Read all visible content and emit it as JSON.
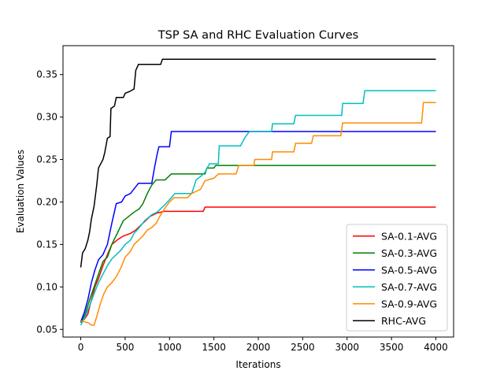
{
  "chart_data": {
    "type": "line",
    "title": "TSP SA and RHC Evaluation Curves",
    "xlabel": "Iterations",
    "ylabel": "Evaluation Values",
    "xlim": [
      -200,
      4200
    ],
    "ylim": [
      0.041,
      0.384
    ],
    "xticks": [
      0,
      500,
      1000,
      1500,
      2000,
      2500,
      3000,
      3500,
      4000
    ],
    "yticks": [
      0.05,
      0.1,
      0.15,
      0.2,
      0.25,
      0.3,
      0.35
    ],
    "ytick_labels": [
      "0.05",
      "0.10",
      "0.15",
      "0.20",
      "0.25",
      "0.30",
      "0.35"
    ],
    "grid": false,
    "legend_position": "lower-right",
    "series": [
      {
        "name": "SA-0.1-AVG",
        "color": "#ff0000",
        "points": [
          [
            0,
            0.06
          ],
          [
            40,
            0.062
          ],
          [
            80,
            0.068
          ],
          [
            120,
            0.085
          ],
          [
            160,
            0.1
          ],
          [
            200,
            0.11
          ],
          [
            250,
            0.125
          ],
          [
            300,
            0.138
          ],
          [
            350,
            0.15
          ],
          [
            420,
            0.156
          ],
          [
            480,
            0.16
          ],
          [
            560,
            0.163
          ],
          [
            620,
            0.167
          ],
          [
            700,
            0.175
          ],
          [
            780,
            0.183
          ],
          [
            860,
            0.187
          ],
          [
            940,
            0.189
          ],
          [
            1000,
            0.189
          ],
          [
            1380,
            0.189
          ],
          [
            1400,
            0.194
          ],
          [
            4000,
            0.194
          ]
        ]
      },
      {
        "name": "SA-0.3-AVG",
        "color": "#008000",
        "points": [
          [
            0,
            0.058
          ],
          [
            50,
            0.068
          ],
          [
            100,
            0.085
          ],
          [
            150,
            0.1
          ],
          [
            200,
            0.115
          ],
          [
            250,
            0.13
          ],
          [
            300,
            0.135
          ],
          [
            350,
            0.15
          ],
          [
            420,
            0.165
          ],
          [
            480,
            0.178
          ],
          [
            540,
            0.183
          ],
          [
            600,
            0.188
          ],
          [
            660,
            0.192
          ],
          [
            700,
            0.198
          ],
          [
            750,
            0.21
          ],
          [
            800,
            0.22
          ],
          [
            850,
            0.226
          ],
          [
            950,
            0.226
          ],
          [
            1020,
            0.233
          ],
          [
            1400,
            0.233
          ],
          [
            1420,
            0.24
          ],
          [
            1500,
            0.24
          ],
          [
            1520,
            0.243
          ],
          [
            4000,
            0.243
          ]
        ]
      },
      {
        "name": "SA-0.5-AVG",
        "color": "#0000ff",
        "points": [
          [
            0,
            0.059
          ],
          [
            40,
            0.07
          ],
          [
            80,
            0.085
          ],
          [
            120,
            0.105
          ],
          [
            160,
            0.12
          ],
          [
            200,
            0.132
          ],
          [
            250,
            0.138
          ],
          [
            300,
            0.15
          ],
          [
            350,
            0.175
          ],
          [
            400,
            0.198
          ],
          [
            460,
            0.2
          ],
          [
            500,
            0.207
          ],
          [
            560,
            0.21
          ],
          [
            620,
            0.218
          ],
          [
            650,
            0.222
          ],
          [
            800,
            0.222
          ],
          [
            830,
            0.24
          ],
          [
            860,
            0.256
          ],
          [
            880,
            0.265
          ],
          [
            1000,
            0.265
          ],
          [
            1020,
            0.283
          ],
          [
            4000,
            0.283
          ]
        ]
      },
      {
        "name": "SA-0.7-AVG",
        "color": "#00bfbf",
        "points": [
          [
            0,
            0.055
          ],
          [
            50,
            0.065
          ],
          [
            100,
            0.078
          ],
          [
            150,
            0.092
          ],
          [
            200,
            0.105
          ],
          [
            250,
            0.115
          ],
          [
            300,
            0.125
          ],
          [
            350,
            0.133
          ],
          [
            400,
            0.138
          ],
          [
            450,
            0.143
          ],
          [
            500,
            0.15
          ],
          [
            560,
            0.155
          ],
          [
            600,
            0.163
          ],
          [
            660,
            0.17
          ],
          [
            720,
            0.178
          ],
          [
            800,
            0.185
          ],
          [
            860,
            0.188
          ],
          [
            950,
            0.197
          ],
          [
            1020,
            0.205
          ],
          [
            1060,
            0.21
          ],
          [
            1250,
            0.21
          ],
          [
            1300,
            0.226
          ],
          [
            1350,
            0.23
          ],
          [
            1400,
            0.235
          ],
          [
            1450,
            0.245
          ],
          [
            1550,
            0.245
          ],
          [
            1560,
            0.266
          ],
          [
            1800,
            0.266
          ],
          [
            1850,
            0.276
          ],
          [
            1900,
            0.283
          ],
          [
            2150,
            0.283
          ],
          [
            2160,
            0.292
          ],
          [
            2400,
            0.292
          ],
          [
            2420,
            0.302
          ],
          [
            2940,
            0.302
          ],
          [
            2950,
            0.316
          ],
          [
            3180,
            0.316
          ],
          [
            3200,
            0.331
          ],
          [
            4000,
            0.331
          ]
        ]
      },
      {
        "name": "SA-0.9-AVG",
        "color": "#ff8c00",
        "points": [
          [
            0,
            0.06
          ],
          [
            80,
            0.058
          ],
          [
            120,
            0.055
          ],
          [
            150,
            0.055
          ],
          [
            180,
            0.065
          ],
          [
            220,
            0.08
          ],
          [
            260,
            0.092
          ],
          [
            300,
            0.1
          ],
          [
            350,
            0.105
          ],
          [
            400,
            0.112
          ],
          [
            450,
            0.122
          ],
          [
            500,
            0.135
          ],
          [
            560,
            0.142
          ],
          [
            600,
            0.15
          ],
          [
            650,
            0.155
          ],
          [
            700,
            0.16
          ],
          [
            750,
            0.167
          ],
          [
            800,
            0.17
          ],
          [
            850,
            0.175
          ],
          [
            900,
            0.185
          ],
          [
            950,
            0.193
          ],
          [
            1000,
            0.2
          ],
          [
            1050,
            0.205
          ],
          [
            1200,
            0.205
          ],
          [
            1250,
            0.21
          ],
          [
            1350,
            0.215
          ],
          [
            1400,
            0.225
          ],
          [
            1500,
            0.228
          ],
          [
            1550,
            0.233
          ],
          [
            1750,
            0.233
          ],
          [
            1780,
            0.243
          ],
          [
            1950,
            0.243
          ],
          [
            1960,
            0.25
          ],
          [
            2150,
            0.25
          ],
          [
            2160,
            0.259
          ],
          [
            2400,
            0.259
          ],
          [
            2420,
            0.269
          ],
          [
            2600,
            0.269
          ],
          [
            2620,
            0.278
          ],
          [
            2930,
            0.278
          ],
          [
            2950,
            0.293
          ],
          [
            3840,
            0.293
          ],
          [
            3860,
            0.317
          ],
          [
            4000,
            0.317
          ]
        ]
      },
      {
        "name": "RHC-AVG",
        "color": "#000000",
        "points": [
          [
            0,
            0.123
          ],
          [
            20,
            0.14
          ],
          [
            50,
            0.145
          ],
          [
            80,
            0.155
          ],
          [
            100,
            0.165
          ],
          [
            120,
            0.18
          ],
          [
            150,
            0.195
          ],
          [
            180,
            0.22
          ],
          [
            200,
            0.24
          ],
          [
            250,
            0.25
          ],
          [
            270,
            0.258
          ],
          [
            300,
            0.275
          ],
          [
            330,
            0.277
          ],
          [
            340,
            0.31
          ],
          [
            380,
            0.313
          ],
          [
            400,
            0.323
          ],
          [
            480,
            0.323
          ],
          [
            500,
            0.328
          ],
          [
            550,
            0.33
          ],
          [
            600,
            0.333
          ],
          [
            620,
            0.355
          ],
          [
            650,
            0.362
          ],
          [
            900,
            0.362
          ],
          [
            920,
            0.368
          ],
          [
            4000,
            0.368
          ]
        ]
      }
    ]
  }
}
